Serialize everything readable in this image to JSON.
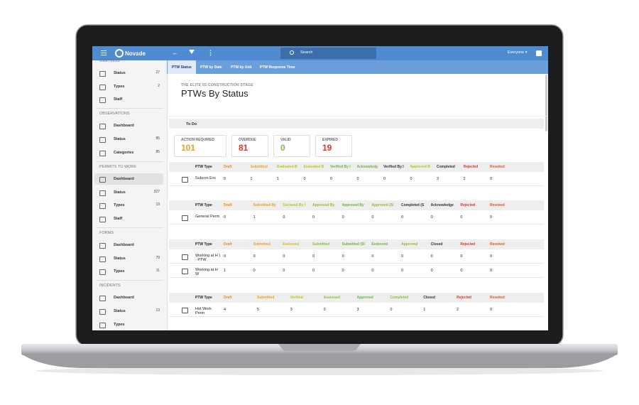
{
  "topbar": {
    "brand": "Novade",
    "search": "Search",
    "user": "Everyone ▾"
  },
  "sidebar": [
    {
      "title": "MEETINGS",
      "items": [
        {
          "label": "Status",
          "count": 27
        },
        {
          "label": "Types",
          "count": 2
        },
        {
          "label": "Staff"
        }
      ]
    },
    {
      "title": "OBSERVATIONS",
      "items": [
        {
          "label": "Dashboard"
        },
        {
          "label": "Status",
          "count": 85
        },
        {
          "label": "Categories",
          "count": 85
        }
      ]
    },
    {
      "title": "PERMITS TO WORK",
      "items": [
        {
          "label": "Dashboard",
          "active": true
        },
        {
          "label": "Status",
          "count": 327
        },
        {
          "label": "Types",
          "count": 19
        },
        {
          "label": "Staff"
        }
      ]
    },
    {
      "title": "FORMS",
      "items": [
        {
          "label": "Dashboard"
        },
        {
          "label": "Status",
          "count": 79
        },
        {
          "label": "Types",
          "count": 11
        }
      ]
    },
    {
      "title": "INCIDENTS",
      "items": [
        {
          "label": "Dashboard"
        },
        {
          "label": "Status",
          "count": 13
        },
        {
          "label": "Types"
        }
      ]
    }
  ],
  "tabs": [
    "PTW Status",
    "PTW by Date",
    "PTW by Unit",
    "PTW Response Time"
  ],
  "header": {
    "project": "THE ELITE 02-CONSTRUCTION STAGE",
    "title": "PTWs By Status"
  },
  "section": "To Do",
  "cards": [
    {
      "label": "ACTION REQUIRED",
      "value": 101,
      "color": "#f0a020"
    },
    {
      "label": "OVERDUE",
      "value": 81,
      "color": "#d9342b"
    },
    {
      "label": "VALID",
      "value": 0,
      "color": "#7cbf3b"
    },
    {
      "label": "EXPIRED",
      "value": 19,
      "color": "#d9342b"
    }
  ],
  "tables": [
    {
      "columns": [
        {
          "label": "PTW Type",
          "color": "#222"
        },
        {
          "label": "Draft",
          "color": "#f08a1c"
        },
        {
          "label": "Submitted",
          "color": "#f0a020"
        },
        {
          "label": "Evaluated B",
          "color": "#c3c21c"
        },
        {
          "label": "Evaluated B",
          "color": "#c3c21c"
        },
        {
          "label": "Verified By I",
          "color": "#6cb33f"
        },
        {
          "label": "Acknowledg",
          "color": "#6cb33f"
        },
        {
          "label": "Verified By I",
          "color": "#333"
        },
        {
          "label": "Approved B",
          "color": "#b5c21c"
        },
        {
          "label": "Completed",
          "color": "#333"
        },
        {
          "label": "Rejected",
          "color": "#d9342b"
        },
        {
          "label": "Revoked",
          "color": "#e0552b"
        }
      ],
      "rows": [
        {
          "type": "Subcon Exc",
          "cells": [
            0,
            1,
            1,
            0,
            0,
            0,
            0,
            0,
            3,
            2,
            0
          ]
        }
      ]
    },
    {
      "columns": [
        {
          "label": "PTW Type",
          "color": "#222"
        },
        {
          "label": "Draft",
          "color": "#f08a1c"
        },
        {
          "label": "Submitted By",
          "color": "#f0a020"
        },
        {
          "label": "Declared By I",
          "color": "#c3c21c"
        },
        {
          "label": "Approved By",
          "color": "#8cbf2f"
        },
        {
          "label": "Approved By",
          "color": "#6cb33f"
        },
        {
          "label": "Approved (Sl",
          "color": "#8cbf2f"
        },
        {
          "label": "Completed (S",
          "color": "#333"
        },
        {
          "label": "Acknowledge",
          "color": "#333"
        },
        {
          "label": "Rejected",
          "color": "#d9342b"
        },
        {
          "label": "Revoked",
          "color": "#e0552b"
        }
      ],
      "rows": [
        {
          "type": "General Perm",
          "cells": [
            0,
            1,
            0,
            0,
            0,
            0,
            0,
            0,
            0,
            0
          ]
        }
      ]
    },
    {
      "columns": [
        {
          "label": "PTW Type",
          "color": "#222"
        },
        {
          "label": "Draft",
          "color": "#f08a1c"
        },
        {
          "label": "Submitted",
          "color": "#f0a020"
        },
        {
          "label": "Endorsed",
          "color": "#c3c21c"
        },
        {
          "label": "Submitted",
          "color": "#8cbf2f"
        },
        {
          "label": "Submitted (Sl",
          "color": "#6cb33f"
        },
        {
          "label": "Endorsed",
          "color": "#6cb33f"
        },
        {
          "label": "Approved",
          "color": "#8cbf2f"
        },
        {
          "label": "Closed",
          "color": "#333"
        },
        {
          "label": "Rejected",
          "color": "#d9342b"
        },
        {
          "label": "Revoked",
          "color": "#e0552b"
        }
      ],
      "rows": [
        {
          "type": "Working at H ) - PTW",
          "cells": [
            0,
            0,
            0,
            0,
            0,
            0,
            0,
            0,
            0,
            0
          ]
        },
        {
          "type": "Working at H W",
          "cells": [
            1,
            0,
            0,
            0,
            0,
            0,
            0,
            0,
            0,
            0
          ]
        }
      ]
    },
    {
      "columns": [
        {
          "label": "PTW Type",
          "color": "#222"
        },
        {
          "label": "Draft",
          "color": "#f08a1c"
        },
        {
          "label": "Submitted",
          "color": "#f0a020"
        },
        {
          "label": "Verified",
          "color": "#c3c21c"
        },
        {
          "label": "Assessed",
          "color": "#8cbf2f"
        },
        {
          "label": "Approved",
          "color": "#6cb33f"
        },
        {
          "label": "Completed",
          "color": "#8cbf2f"
        },
        {
          "label": "Closed",
          "color": "#333"
        },
        {
          "label": "Rejected",
          "color": "#d9342b"
        },
        {
          "label": "Revoked",
          "color": "#e0552b"
        }
      ],
      "rows": [
        {
          "type": "Hot Work Perm",
          "cells": [
            4,
            5,
            3,
            0,
            3,
            0,
            1,
            2,
            0
          ]
        }
      ]
    }
  ]
}
